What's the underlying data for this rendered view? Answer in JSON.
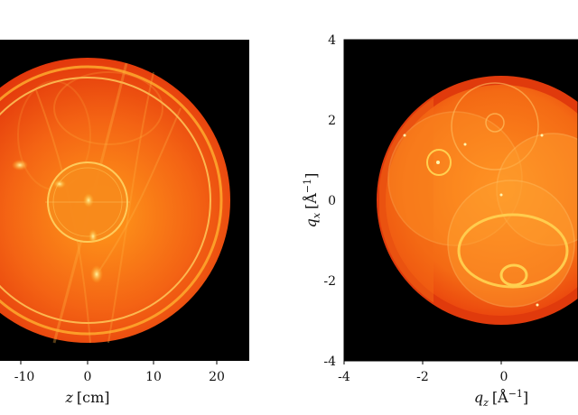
{
  "chart_data": [
    {
      "type": "heatmap",
      "panel": "left",
      "xlabel_var": "z",
      "xlabel_unit": "[cm]",
      "x_ticks": [
        -10,
        0,
        10,
        20
      ],
      "xlim": [
        -13,
        25
      ],
      "description": "circular real-space detector image, orange/yellow intensity on black"
    },
    {
      "type": "heatmap",
      "panel": "right",
      "xlabel_var": "q",
      "xlabel_sub": "z",
      "xlabel_unit": "[Å",
      "xlabel_exp": "−1",
      "xlabel_close": "]",
      "ylabel_var": "q",
      "ylabel_sub": "x",
      "ylabel_unit": "[Å",
      "ylabel_exp": "−1",
      "ylabel_close": "]",
      "x_ticks": [
        -4,
        -2,
        0
      ],
      "y_ticks": [
        4,
        2,
        0,
        -2,
        -4
      ],
      "xlim": [
        -4,
        1.2
      ],
      "ylim": [
        -4,
        4
      ],
      "description": "reciprocal-space map with overlapping circular rings"
    }
  ],
  "colors": {
    "background": "#000000",
    "outer": "#e23a0a",
    "mid": "#f26a14",
    "bright": "#ffb020",
    "ring": "#ffd060"
  }
}
